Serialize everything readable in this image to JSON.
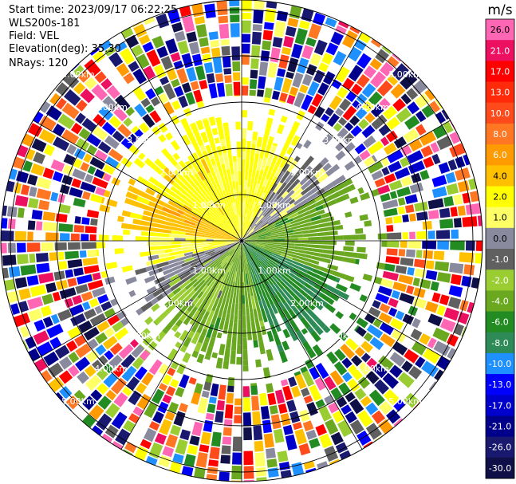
{
  "header": {
    "start_time": "Start time: 2023/09/17 06:22:25",
    "instrument": "WLS200s-181",
    "field": "Field: VEL",
    "elevation": "Elevation(deg): 35.30",
    "nrays": "NRays: 120"
  },
  "colorbar": {
    "unit": "m/s",
    "ticks": [
      "26.0",
      "21.0",
      "17.0",
      "13.0",
      "10.0",
      "8.0",
      "6.0",
      "4.0",
      "2.0",
      "1.0",
      "0.0",
      "-1.0",
      "-2.0",
      "-4.0",
      "-6.0",
      "-8.0",
      "-10.0",
      "-13.0",
      "-17.0",
      "-21.0",
      "-26.0",
      "-30.0"
    ],
    "colors": [
      "#ff66b3",
      "#ee1060",
      "#ff0000",
      "#ff2a0a",
      "#ff4a1c",
      "#ff7722",
      "#ff9a00",
      "#ffc000",
      "#ffff00",
      "#ffff66",
      "#8a8a9e",
      "#606060",
      "#9acd32",
      "#6aa820",
      "#228b22",
      "#2e8b57",
      "#1e90ff",
      "#0000ff",
      "#0000cd",
      "#00008b",
      "#191970",
      "#101048"
    ]
  },
  "chart_data": {
    "type": "ppi-polar",
    "field": "VEL",
    "units": "m/s",
    "nrays": 120,
    "range_rings_km": [
      1.0,
      2.0,
      3.0,
      4.0,
      5.0
    ],
    "ring_labels": [
      "1.00km",
      "2.00km",
      "3.00km",
      "4.00km",
      "5.00km"
    ],
    "clean_echo_max_range_km": 2.8,
    "velocity_sectors": [
      {
        "from_deg": -60,
        "to_deg": -20,
        "velocity_ms": 3,
        "label": "yellow"
      },
      {
        "from_deg": -20,
        "to_deg": 30,
        "velocity_ms": 2.5,
        "label": "yellow"
      },
      {
        "from_deg": 30,
        "to_deg": 60,
        "velocity_ms": 0.5,
        "label": "grey"
      },
      {
        "from_deg": 60,
        "to_deg": 110,
        "velocity_ms": -3,
        "label": "olive"
      },
      {
        "from_deg": 110,
        "to_deg": 165,
        "velocity_ms": -6,
        "label": "green"
      },
      {
        "from_deg": 165,
        "to_deg": 200,
        "velocity_ms": -3,
        "label": "olive"
      },
      {
        "from_deg": 200,
        "to_deg": 235,
        "velocity_ms": -2,
        "label": "olive"
      },
      {
        "from_deg": 235,
        "to_deg": 255,
        "velocity_ms": 0,
        "label": "grey"
      },
      {
        "from_deg": 255,
        "to_deg": 275,
        "velocity_ms": 2,
        "label": "yellow"
      },
      {
        "from_deg": 275,
        "to_deg": 300,
        "velocity_ms": 5,
        "label": "orange"
      }
    ],
    "noise_palette": [
      "#ff66b3",
      "#ee1060",
      "#ff0000",
      "#ff4a1c",
      "#ff7722",
      "#ff9a00",
      "#ffc000",
      "#ffff00",
      "#ffff66",
      "#8a8a9e",
      "#606060",
      "#9acd32",
      "#6aa820",
      "#228b22",
      "#1e90ff",
      "#0000ff",
      "#0000cd",
      "#00008b",
      "#191970",
      "#101048"
    ]
  }
}
